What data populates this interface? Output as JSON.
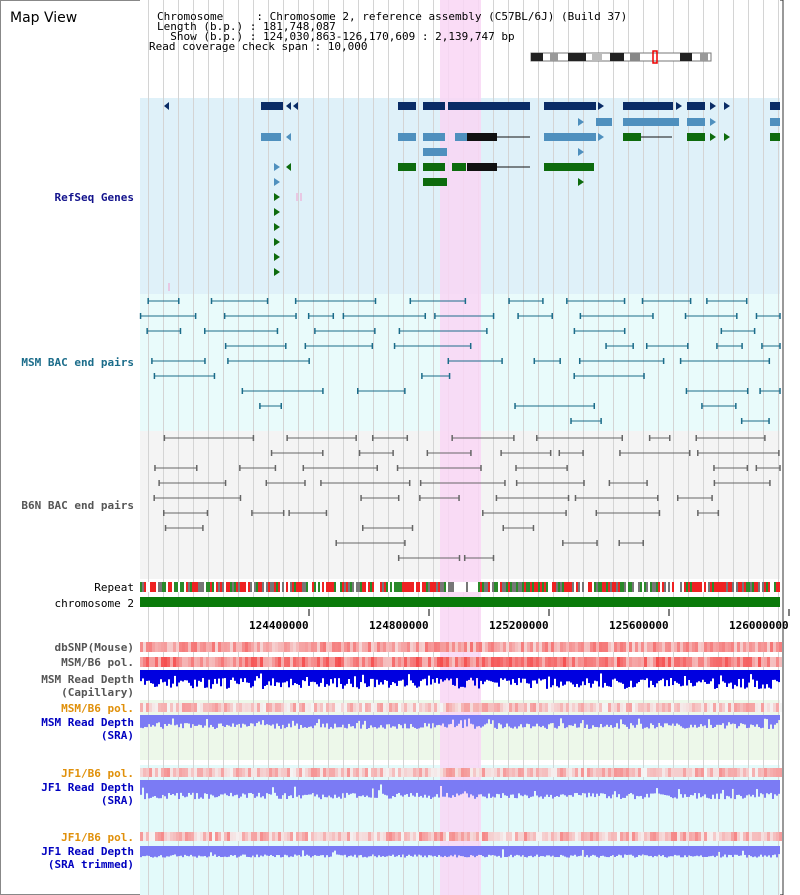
{
  "header": {
    "title": "Map View",
    "info_lines": [
      "Chromosome     : Chromosome 2, reference assembly (C57BL/6J) (Build 37)",
      "Length (b.p.) : 181,748,087",
      "  Show (b.p.) : 124,030,863-126,170,609 : 2,139,747 bp",
      "Read coverage check span : 10,000"
    ]
  },
  "tracks": {
    "refseq": "RefSeq Genes",
    "msm_bac": "MSM BAC end pairs",
    "b6n_bac": "B6N BAC end pairs",
    "repeat": "Repeat",
    "chromosome": "chromosome 2",
    "dbsnp": "dbSNP(Mouse)",
    "msm_b6_pol_1": "MSM/B6 pol.",
    "msm_read_depth_cap_1": "MSM Read Depth",
    "msm_read_depth_cap_2": "(Capillary)",
    "msm_b6_pol_2": "MSM/B6 pol.",
    "msm_read_depth_sra_1": "MSM Read Depth",
    "msm_read_depth_sra_2": "(SRA)",
    "jf1_b6_pol_1": "JF1/B6 pol.",
    "jf1_read_depth_sra_1": "JF1 Read Depth",
    "jf1_read_depth_sra_2": "(SRA)",
    "jf1_b6_pol_2": "JF1/B6 pol.",
    "jf1_read_depth_trim_1": "JF1 Read Depth",
    "jf1_read_depth_trim_2": "(SRA trimmed)"
  },
  "ruler": [
    "124400000",
    "124800000",
    "125200000",
    "125600000",
    "126000000"
  ],
  "colors": {
    "refseq_bg": "#dff1f9",
    "bac_bg": "#e9fbfb",
    "b6n_bg": "#f4f4f4",
    "highlight": "#f9d6f4",
    "chrom_bar": "#0a7a0a",
    "gene_navy": "#0a2c66",
    "gene_steel": "#4f90be",
    "gene_green": "#0d6b0d",
    "depth_blue": "#0000e0",
    "depth_violet": "#7b7bf4"
  }
}
